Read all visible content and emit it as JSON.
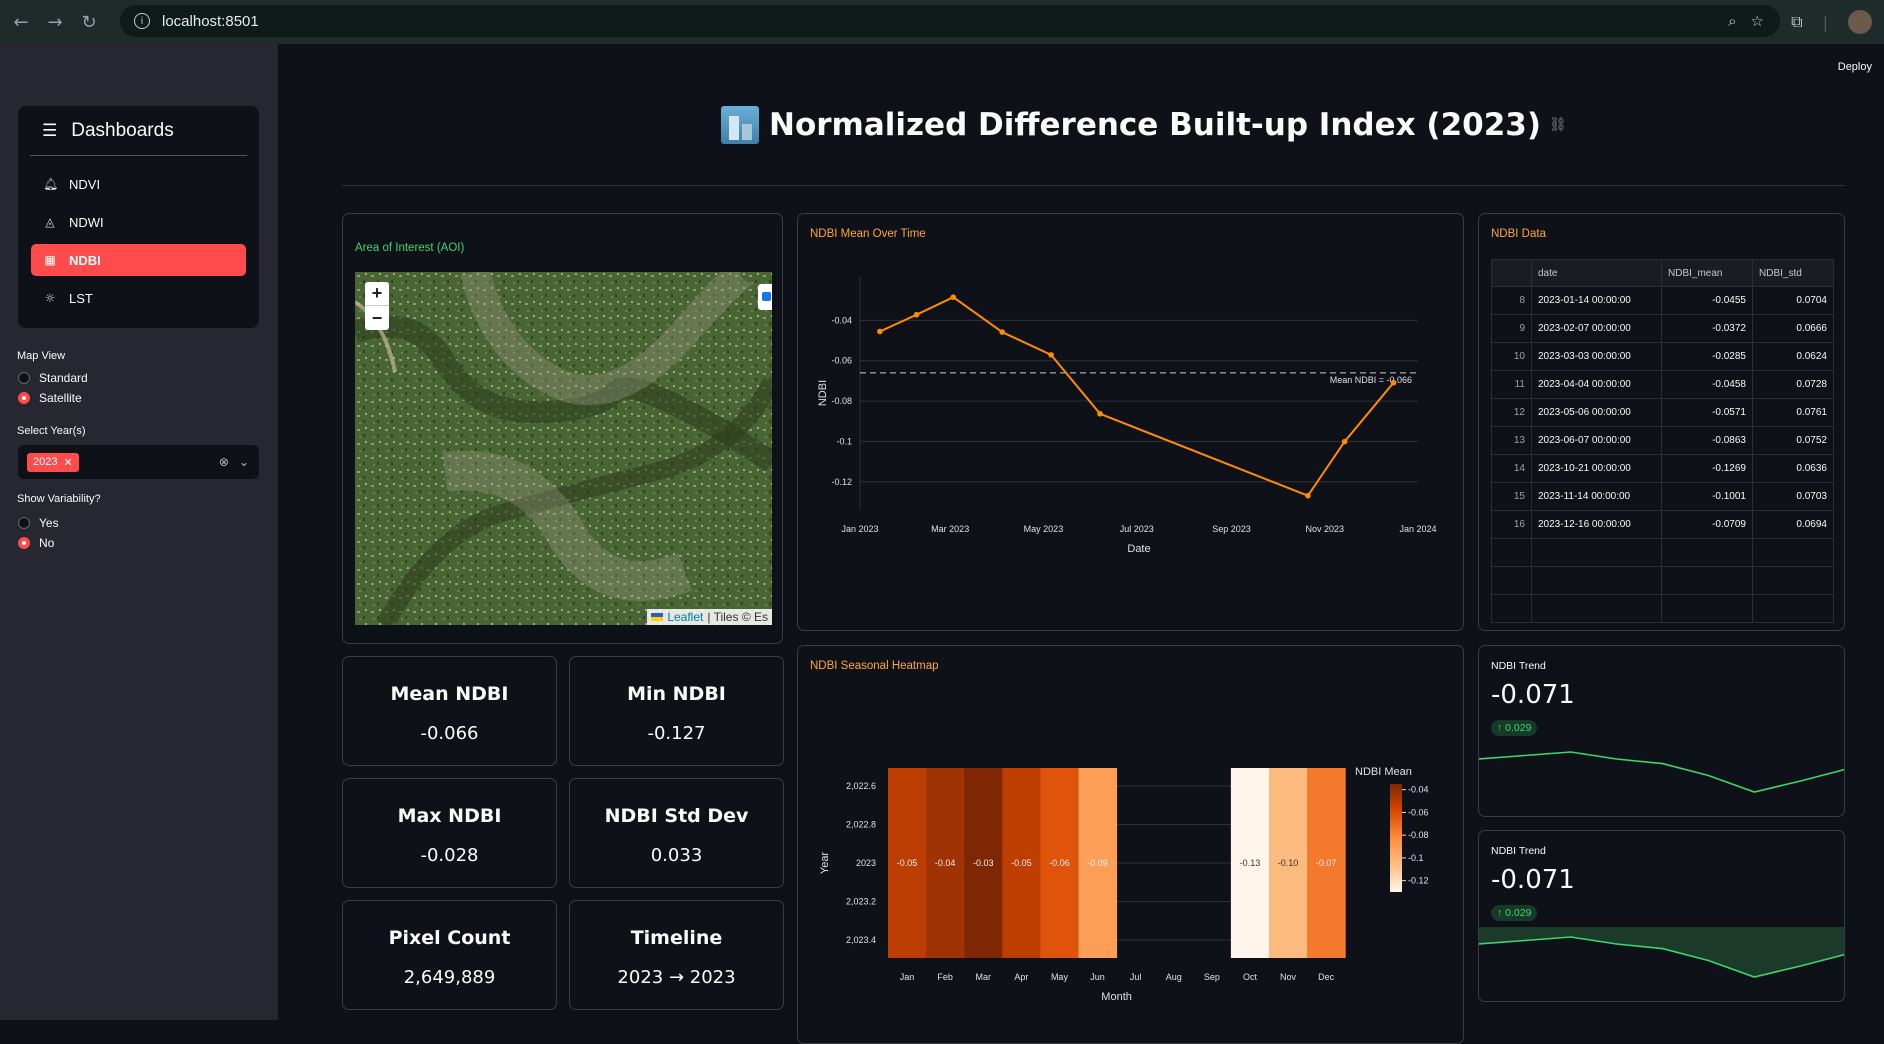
{
  "browser": {
    "url": "localhost:8501"
  },
  "sidebar": {
    "menu_title": "Dashboards",
    "items": [
      {
        "label": "NDVI",
        "icon": "bell-icon",
        "active": false
      },
      {
        "label": "NDWI",
        "icon": "droplet-icon",
        "active": false
      },
      {
        "label": "NDBI",
        "icon": "building-icon",
        "active": true
      },
      {
        "label": "LST",
        "icon": "sun-icon",
        "active": false
      }
    ],
    "map_view": {
      "label": "Map View",
      "options": [
        "Standard",
        "Satellite"
      ],
      "selected": "Satellite"
    },
    "year_select": {
      "label": "Select Year(s)",
      "selected_tag": "2023"
    },
    "variability": {
      "label": "Show Variability?",
      "options": [
        "Yes",
        "No"
      ],
      "selected": "No"
    }
  },
  "header": {
    "deploy_label": "Deploy",
    "title": "Normalized Difference Built-up Index (2023)"
  },
  "aoi": {
    "title": "Area of Interest (AOI)",
    "zoom_in": "+",
    "zoom_out": "−",
    "attribution_link": "Leaflet",
    "attribution_text": "| Tiles © Es"
  },
  "stats": [
    {
      "label": "Mean NDBI",
      "value": "-0.066"
    },
    {
      "label": "Min NDBI",
      "value": "-0.127"
    },
    {
      "label": "Max NDBI",
      "value": "-0.028"
    },
    {
      "label": "NDBI Std Dev",
      "value": "0.033"
    },
    {
      "label": "Pixel Count",
      "value": "2,649,889"
    },
    {
      "label": "Timeline",
      "value": "2023 → 2023"
    }
  ],
  "line_chart": {
    "title": "NDBI Mean Over Time",
    "mean_label": "Mean NDBI = -0.066"
  },
  "heatmap": {
    "title": "NDBI Seasonal Heatmap",
    "legend_title": "NDBI Mean"
  },
  "data_table": {
    "title": "NDBI Data",
    "columns": [
      "",
      "date",
      "NDBI_mean",
      "NDBI_std"
    ],
    "rows": [
      [
        "8",
        "2023-01-14 00:00:00",
        "-0.0455",
        "0.0704"
      ],
      [
        "9",
        "2023-02-07 00:00:00",
        "-0.0372",
        "0.0666"
      ],
      [
        "10",
        "2023-03-03 00:00:00",
        "-0.0285",
        "0.0624"
      ],
      [
        "11",
        "2023-04-04 00:00:00",
        "-0.0458",
        "0.0728"
      ],
      [
        "12",
        "2023-05-06 00:00:00",
        "-0.0571",
        "0.0761"
      ],
      [
        "13",
        "2023-06-07 00:00:00",
        "-0.0863",
        "0.0752"
      ],
      [
        "14",
        "2023-10-21 00:00:00",
        "-0.1269",
        "0.0636"
      ],
      [
        "15",
        "2023-11-14 00:00:00",
        "-0.1001",
        "0.0703"
      ],
      [
        "16",
        "2023-12-16 00:00:00",
        "-0.0709",
        "0.0694"
      ]
    ]
  },
  "trends": [
    {
      "title": "NDBI Trend",
      "value": "-0.071",
      "delta": "↑ 0.029",
      "area": false
    },
    {
      "title": "NDBI Trend",
      "value": "-0.071",
      "delta": "↑ 0.029",
      "area": true
    }
  ],
  "chart_data": [
    {
      "type": "line",
      "title": "NDBI Mean Over Time",
      "xlabel": "Date",
      "ylabel": "NDBI",
      "x": [
        "2023-01-14",
        "2023-02-07",
        "2023-03-03",
        "2023-04-04",
        "2023-05-06",
        "2023-06-07",
        "2023-10-21",
        "2023-11-14",
        "2023-12-16"
      ],
      "y": [
        -0.0455,
        -0.0372,
        -0.0285,
        -0.0458,
        -0.0571,
        -0.0863,
        -0.1269,
        -0.1001,
        -0.0709
      ],
      "x_ticks": [
        "Jan 2023",
        "Mar 2023",
        "May 2023",
        "Jul 2023",
        "Sep 2023",
        "Nov 2023",
        "Jan 2024"
      ],
      "y_ticks": [
        "-0.04",
        "-0.06",
        "-0.08",
        "-0.1",
        "-0.12"
      ],
      "y_tick_values": [
        -0.04,
        -0.06,
        -0.08,
        -0.1,
        -0.12
      ],
      "reference_line": -0.066,
      "color": "#ff8c00",
      "grid": true
    },
    {
      "type": "heatmap",
      "title": "NDBI Seasonal Heatmap",
      "xlabel": "Month",
      "ylabel": "Year",
      "months": [
        "Jan",
        "Feb",
        "Mar",
        "Apr",
        "May",
        "Jun",
        "Jul",
        "Aug",
        "Sep",
        "Oct",
        "Nov",
        "Dec"
      ],
      "y_ticks": [
        "2,022.6",
        "2,022.8",
        "2023",
        "2,023.2",
        "2,023.4"
      ],
      "year": 2023,
      "values": [
        -0.0455,
        -0.0372,
        -0.0285,
        -0.0458,
        -0.0571,
        -0.0863,
        null,
        null,
        null,
        -0.1269,
        -0.1001,
        -0.0709
      ],
      "labels": [
        "-0.05",
        "-0.04",
        "-0.03",
        "-0.05",
        "-0.06",
        "-0.09",
        "",
        "",
        "",
        "-0.13",
        "-0.10",
        "-0.07"
      ],
      "legend_title": "NDBI Mean",
      "legend_ticks": [
        "-0.04",
        "-0.06",
        "-0.08",
        "-0.1",
        "-0.12"
      ],
      "legend_values": [
        -0.04,
        -0.06,
        -0.08,
        -0.1,
        -0.12
      ],
      "range": [
        -0.1269,
        -0.0285
      ],
      "colorscale": [
        "#fff5eb",
        "#fdbe85",
        "#fd8d3c",
        "#e6550d",
        "#a63603",
        "#7f2704"
      ]
    },
    {
      "type": "line",
      "title": "NDBI Trend",
      "values": [
        -0.0455,
        -0.0372,
        -0.0285,
        -0.0458,
        -0.0571,
        -0.0863,
        -0.1269,
        -0.1001,
        -0.0709
      ],
      "color": "#3dd56d"
    }
  ]
}
